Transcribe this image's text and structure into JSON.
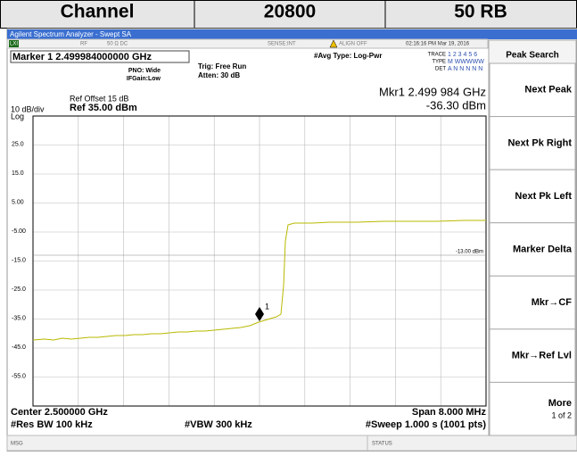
{
  "header": {
    "cells": [
      "Channel",
      "20800",
      "50 RB"
    ]
  },
  "window": {
    "title": "Agilent Spectrum Analyzer - Swept SA",
    "status_row": {
      "lxi": "LXI",
      "rf": "RF",
      "impedance": "50 Ω  DC",
      "sense": "SENSE:INT",
      "align": "ALIGN OFF",
      "datetime": "02:16:16 PM Mar 19, 2016"
    },
    "marker_line": "Marker 1  2.499984000000 GHz",
    "settings": {
      "pno": "PNO: Wide",
      "ifgain": "IFGain:Low",
      "trig": "Trig: Free Run",
      "atten": "Atten: 30 dB",
      "avg": "#Avg Type: Log-Pwr",
      "trace": "TRACE",
      "trace_nums": "1 2 3 4 5 6",
      "type": "TYPE",
      "type_vals": "M WWWWW",
      "det": "DET",
      "det_vals": "A N N N N N"
    },
    "marker_readout": {
      "freq": "Mkr1 2.499 984 GHz",
      "level": "-36.30 dBm"
    },
    "ref": {
      "offset": "Ref Offset 15 dB",
      "scale": "10 dB/div",
      "level": "Ref 35.00 dBm",
      "log": "Log"
    },
    "y_labels": [
      "25.0",
      "15.0",
      "5.00",
      "-5.00",
      "-15.0",
      "-25.0",
      "-35.0",
      "-45.0",
      "-55.0"
    ],
    "display_line": "-13.00 dBm",
    "marker_label": "1",
    "footer": {
      "center": "Center 2.500000 GHz",
      "rbw": "#Res BW 100 kHz",
      "vbw": "#VBW 300 kHz",
      "span": "Span 8.000 MHz",
      "sweep": "#Sweep  1.000 s (1001 pts)"
    },
    "status_bar": {
      "msg": "MSG",
      "status": "STATUS"
    },
    "softkeys": {
      "title": "Peak Search",
      "keys": [
        "Next Peak",
        "Next Pk Right",
        "Next Pk Left",
        "Marker Delta",
        "Mkr→CF",
        "Mkr→Ref Lvl",
        "More"
      ],
      "page": "1 of 2"
    }
  }
}
